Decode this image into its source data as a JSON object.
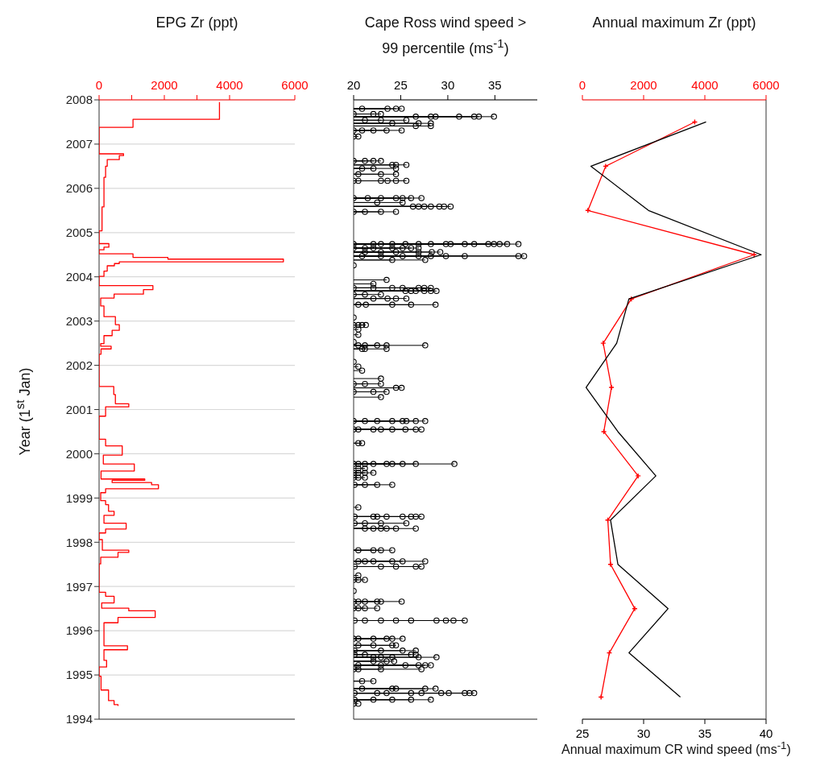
{
  "chart_data": [
    {
      "type": "line",
      "title": "EPG Zr (ppt)",
      "ylabel": "Year (1$^{st}$ Jan)",
      "ylim": [
        1994,
        2008
      ],
      "yticks": [
        1994,
        1995,
        1996,
        1997,
        1998,
        1999,
        2000,
        2001,
        2002,
        2003,
        2004,
        2005,
        2006,
        2007,
        2008
      ],
      "xlim": [
        0,
        6000
      ],
      "xticks": [
        0,
        {
          "value": 1000,
          "label": null
        },
        2000,
        {
          "value": 3000,
          "label": null
        },
        4000,
        6000
      ],
      "grid": "y",
      "marker": "none",
      "line_style": "solid",
      "series": [
        {
          "color": "#ff0000",
          "x": [
            3690,
            3690,
            1040,
            1040,
            0,
            0,
            750,
            750,
            620,
            620,
            250,
            250,
            200,
            200,
            150,
            150,
            90,
            90,
            0,
            0,
            300,
            300,
            150,
            150,
            0,
            0,
            1040,
            1040,
            2110,
            2110,
            5650,
            5650,
            620,
            620,
            470,
            470,
            250,
            250,
            150,
            150,
            0,
            0,
            1650,
            1650,
            1360,
            1360,
            460,
            460,
            50,
            50,
            150,
            150,
            500,
            500,
            620,
            620,
            400,
            400,
            150,
            150,
            50,
            50,
            370,
            370,
            60,
            60,
            0,
            0,
            450,
            450,
            500,
            500,
            910,
            910,
            200,
            200,
            0,
            0,
            200,
            200,
            710,
            710,
            130,
            130,
            1080,
            1080,
            60,
            60,
            1400,
            1400,
            400,
            400,
            1610,
            1610,
            1820,
            1820,
            200,
            200,
            50,
            50,
            200,
            200,
            290,
            290,
            460,
            460,
            150,
            150,
            830,
            830,
            200,
            200,
            0,
            0,
            100,
            100,
            910,
            910,
            580,
            580,
            50,
            50,
            0,
            0,
            200,
            200,
            460,
            460,
            80,
            80,
            910,
            910,
            1720,
            1720,
            580,
            580,
            150,
            150,
            870,
            870,
            150,
            150,
            230,
            230,
            0,
            0,
            60,
            60,
            290,
            290,
            460,
            460,
            580,
            580
          ],
          "values": [
            2007.95,
            2007.56,
            2007.56,
            2007.38,
            2007.38,
            2006.78,
            2006.78,
            2006.74,
            2006.74,
            2006.65,
            2006.65,
            2006.5,
            2006.5,
            2006.25,
            2006.25,
            2005.58,
            2005.58,
            2005.04,
            2005.04,
            2004.75,
            2004.75,
            2004.67,
            2004.67,
            2004.61,
            2004.61,
            2004.52,
            2004.52,
            2004.44,
            2004.44,
            2004.4,
            2004.4,
            2004.34,
            2004.34,
            2004.3,
            2004.3,
            2004.25,
            2004.25,
            2004.13,
            2004.13,
            2004.01,
            2004.01,
            2003.8,
            2003.8,
            2003.71,
            2003.71,
            2003.61,
            2003.61,
            2003.52,
            2003.52,
            2003.34,
            2003.34,
            2003.1,
            2003.1,
            2002.92,
            2002.92,
            2002.79,
            2002.79,
            2002.67,
            2002.67,
            2002.49,
            2002.49,
            2002.43,
            2002.43,
            2002.37,
            2002.37,
            2002.25,
            2002.25,
            2001.52,
            2001.52,
            2001.34,
            2001.34,
            2001.13,
            2001.13,
            2001.06,
            2001.06,
            2000.85,
            2000.85,
            2000.33,
            2000.33,
            2000.18,
            2000.18,
            1999.97,
            1999.97,
            1999.77,
            1999.77,
            1999.61,
            1999.61,
            1999.43,
            1999.43,
            1999.4,
            1999.4,
            1999.35,
            1999.35,
            1999.3,
            1999.3,
            1999.21,
            1999.21,
            1999.12,
            1999.12,
            1998.94,
            1998.94,
            1998.85,
            1998.85,
            1998.7,
            1998.7,
            1998.61,
            1998.61,
            1998.43,
            1998.43,
            1998.3,
            1998.3,
            1998.21,
            1998.21,
            1998.06,
            1998.06,
            1997.82,
            1997.82,
            1997.77,
            1997.77,
            1997.66,
            1997.66,
            1997.51,
            1997.51,
            1996.87,
            1996.87,
            1996.78,
            1996.78,
            1996.63,
            1996.63,
            1996.51,
            1996.51,
            1996.45,
            1996.45,
            1996.3,
            1996.3,
            1996.18,
            1996.18,
            1995.66,
            1995.66,
            1995.57,
            1995.57,
            1995.33,
            1995.33,
            1995.18,
            1995.18,
            1994.97,
            1994.97,
            1994.66,
            1994.66,
            1994.42,
            1994.42,
            1994.33,
            1994.33,
            1994.3
          ]
        }
      ]
    },
    {
      "type": "lollipop",
      "title": "Cape Ross wind speed > 99 percentile (ms$^{-1}$)",
      "ylim": [
        1994,
        2008
      ],
      "yticks": [
        1994,
        1995,
        1996,
        1997,
        1998,
        1999,
        2000,
        2001,
        2002,
        2003,
        2004,
        2005,
        2006,
        2007,
        2008
      ],
      "xlim": [
        20,
        39.5
      ],
      "xticks": [
        20,
        25,
        30,
        35
      ],
      "tick_labels": "x",
      "grid": "y",
      "marker": "circle",
      "orientation": "horizontal",
      "series": [
        {
          "color": "#000000",
          "values": [
            20.9,
            23.6,
            24.5,
            25.1,
            20.0,
            22.1,
            22.9,
            26.6,
            28.2,
            28.7,
            31.2,
            32.8,
            33.3,
            34.9,
            21.2,
            22.9,
            25.6,
            24.1,
            26.9,
            28.2,
            26.6,
            28.2,
            20.0,
            20.9,
            22.1,
            23.5,
            25.1,
            20.0,
            20.5,
            20.0,
            21.2,
            22.1,
            22.9,
            24.1,
            24.5,
            25.6,
            20.9,
            22.1,
            24.5,
            20.5,
            22.9,
            24.5,
            20.0,
            20.5,
            22.9,
            23.6,
            24.5,
            25.6,
            20.0,
            21.5,
            22.9,
            24.5,
            25.2,
            26.1,
            27.2,
            22.5,
            25.2,
            26.3,
            26.9,
            27.5,
            28.2,
            29.1,
            29.6,
            30.3,
            20.0,
            21.2,
            22.9,
            24.5,
            20.0,
            22.1,
            22.9,
            24.1,
            25.5,
            26.9,
            28.2,
            29.8,
            30.3,
            31.8,
            32.8,
            34.3,
            34.9,
            35.5,
            36.3,
            37.5,
            20.0,
            21.2,
            22.1,
            24.1,
            25.2,
            26.1,
            26.9,
            21.2,
            22.9,
            24.5,
            26.9,
            28.3,
            29.2,
            20.9,
            22.9,
            25.2,
            26.9,
            28.2,
            29.8,
            31.8,
            37.5,
            38.1,
            24.1,
            27.6,
            20.0,
            23.5,
            22.1,
            20.0,
            22.1,
            24.1,
            25.2,
            26.9,
            27.5,
            28.2,
            25.5,
            26.1,
            26.6,
            27.5,
            28.2,
            28.8,
            20.0,
            21.2,
            22.9,
            22.1,
            23.6,
            24.5,
            25.6,
            20.5,
            21.3,
            24.1,
            26.1,
            28.7,
            20.0,
            20.0,
            20.5,
            20.9,
            21.3,
            20.5,
            20.5,
            20.0,
            20.5,
            21.2,
            22.5,
            23.5,
            27.6,
            20.9,
            21.2,
            23.5,
            20.0,
            20.5,
            20.9,
            22.9,
            20.0,
            21.2,
            22.9,
            24.5,
            25.1,
            20.0,
            22.1,
            23.5,
            22.9,
            20.0,
            21.2,
            22.5,
            24.1,
            25.2,
            25.6,
            26.6,
            27.6,
            20.0,
            20.5,
            22.1,
            22.9,
            24.1,
            25.5,
            26.6,
            27.2,
            20.5,
            20.9,
            20.0,
            20.5,
            21.2,
            22.1,
            23.5,
            24.1,
            25.2,
            26.6,
            30.7,
            20.5,
            21.2,
            20.0,
            20.5,
            21.2,
            22.1,
            20.0,
            20.5,
            21.2,
            20.1,
            21.2,
            22.5,
            24.1,
            20.5,
            20.1,
            22.1,
            22.5,
            23.5,
            25.2,
            26.1,
            26.6,
            27.2,
            20.1,
            21.2,
            22.9,
            25.6,
            21.2,
            22.1,
            22.9,
            23.5,
            24.5,
            26.6,
            20.5,
            22.1,
            22.9,
            24.1,
            20.5,
            21.2,
            22.1,
            24.1,
            25.2,
            27.6,
            20.1,
            22.9,
            24.5,
            26.6,
            27.2,
            20.5,
            20.0,
            20.5,
            21.2,
            20.0,
            20.0,
            20.5,
            21.2,
            22.5,
            22.9,
            25.1,
            20.0,
            20.5,
            21.2,
            22.5,
            20.1,
            21.2,
            22.9,
            24.5,
            26.1,
            28.8,
            29.8,
            30.6,
            31.8,
            20.0,
            20.5,
            22.1,
            23.5,
            24.1,
            25.2,
            20.5,
            22.1,
            24.1,
            24.5,
            20.1,
            22.9,
            25.2,
            26.6,
            20.1,
            21.2,
            26.1,
            26.6,
            22.1,
            22.9,
            24.1,
            26.9,
            28.8,
            22.1,
            23.5,
            24.3,
            20.5,
            22.9,
            25.5,
            26.9,
            27.6,
            28.2,
            20.0,
            20.5,
            22.9,
            27.2,
            20.9,
            22.1,
            20.9,
            24.1,
            24.5,
            27.6,
            28.7,
            20.1,
            22.5,
            23.5,
            26.1,
            27.2,
            29.3,
            30.1,
            31.8,
            32.3,
            32.8,
            20.1,
            22.1,
            24.1,
            26.1,
            28.2,
            20.0,
            20.5
          ],
          "x": [
            2007.8,
            2007.8,
            2007.8,
            2007.8,
            2007.68,
            2007.68,
            2007.68,
            2007.62,
            2007.62,
            2007.62,
            2007.62,
            2007.62,
            2007.62,
            2007.62,
            2007.54,
            2007.54,
            2007.54,
            2007.47,
            2007.47,
            2007.47,
            2007.41,
            2007.41,
            2007.31,
            2007.31,
            2007.31,
            2007.31,
            2007.31,
            2007.17,
            2007.17,
            2006.62,
            2006.62,
            2006.62,
            2006.62,
            2006.53,
            2006.53,
            2006.53,
            2006.45,
            2006.45,
            2006.45,
            2006.32,
            2006.32,
            2006.32,
            2006.17,
            2006.17,
            2006.17,
            2006.17,
            2006.17,
            2006.17,
            2005.78,
            2005.78,
            2005.78,
            2005.78,
            2005.78,
            2005.78,
            2005.78,
            2005.68,
            2005.68,
            2005.59,
            2005.59,
            2005.59,
            2005.59,
            2005.59,
            2005.59,
            2005.59,
            2005.47,
            2005.47,
            2005.47,
            2005.47,
            2004.74,
            2004.74,
            2004.74,
            2004.74,
            2004.74,
            2004.74,
            2004.74,
            2004.74,
            2004.74,
            2004.74,
            2004.74,
            2004.74,
            2004.74,
            2004.74,
            2004.74,
            2004.74,
            2004.65,
            2004.65,
            2004.65,
            2004.65,
            2004.65,
            2004.65,
            2004.65,
            2004.56,
            2004.56,
            2004.56,
            2004.56,
            2004.56,
            2004.56,
            2004.47,
            2004.47,
            2004.47,
            2004.47,
            2004.47,
            2004.47,
            2004.47,
            2004.47,
            2004.47,
            2004.38,
            2004.38,
            2004.26,
            2003.93,
            2003.84,
            2003.75,
            2003.75,
            2003.75,
            2003.75,
            2003.75,
            2003.75,
            2003.75,
            2003.68,
            2003.68,
            2003.68,
            2003.68,
            2003.68,
            2003.68,
            2003.6,
            2003.6,
            2003.6,
            2003.51,
            2003.51,
            2003.51,
            2003.51,
            2003.37,
            2003.37,
            2003.37,
            2003.37,
            2003.37,
            2003.08,
            2002.91,
            2002.91,
            2002.91,
            2002.91,
            2002.81,
            2002.69,
            2002.53,
            2002.45,
            2002.45,
            2002.45,
            2002.45,
            2002.45,
            2002.37,
            2002.37,
            2002.37,
            2002.08,
            2001.97,
            2001.88,
            2001.7,
            2001.58,
            2001.58,
            2001.58,
            2001.49,
            2001.49,
            2001.4,
            2001.4,
            2001.4,
            2001.28,
            2000.74,
            2000.74,
            2000.74,
            2000.74,
            2000.74,
            2000.74,
            2000.74,
            2000.74,
            2000.55,
            2000.55,
            2000.55,
            2000.55,
            2000.55,
            2000.55,
            2000.55,
            2000.55,
            2000.24,
            2000.24,
            1999.77,
            1999.77,
            1999.77,
            1999.77,
            1999.77,
            1999.77,
            1999.77,
            1999.77,
            1999.77,
            1999.67,
            1999.67,
            1999.57,
            1999.57,
            1999.57,
            1999.57,
            1999.46,
            1999.46,
            1999.46,
            1999.3,
            1999.3,
            1999.3,
            1999.3,
            1998.79,
            1998.58,
            1998.58,
            1998.58,
            1998.58,
            1998.58,
            1998.58,
            1998.58,
            1998.58,
            1998.43,
            1998.43,
            1998.43,
            1998.43,
            1998.31,
            1998.31,
            1998.31,
            1998.31,
            1998.31,
            1998.31,
            1997.82,
            1997.82,
            1997.82,
            1997.82,
            1997.57,
            1997.57,
            1997.57,
            1997.57,
            1997.57,
            1997.57,
            1997.45,
            1997.45,
            1997.45,
            1997.45,
            1997.45,
            1997.25,
            1997.15,
            1997.15,
            1997.15,
            1996.9,
            1996.66,
            1996.66,
            1996.66,
            1996.66,
            1996.66,
            1996.66,
            1996.51,
            1996.51,
            1996.51,
            1996.51,
            1996.23,
            1996.23,
            1996.23,
            1996.23,
            1996.23,
            1996.23,
            1996.23,
            1996.23,
            1996.23,
            1995.82,
            1995.82,
            1995.82,
            1995.82,
            1995.82,
            1995.82,
            1995.67,
            1995.67,
            1995.67,
            1995.67,
            1995.55,
            1995.55,
            1995.55,
            1995.55,
            1995.46,
            1995.46,
            1995.46,
            1995.46,
            1995.4,
            1995.4,
            1995.4,
            1995.4,
            1995.4,
            1995.31,
            1995.31,
            1995.31,
            1995.22,
            1995.22,
            1995.22,
            1995.22,
            1995.22,
            1995.22,
            1995.13,
            1995.13,
            1995.13,
            1995.13,
            1994.86,
            1994.86,
            1994.69,
            1994.69,
            1994.69,
            1994.69,
            1994.69,
            1994.59,
            1994.59,
            1994.59,
            1994.59,
            1994.59,
            1994.59,
            1994.59,
            1994.59,
            1994.59,
            1994.59,
            1994.44,
            1994.44,
            1994.44,
            1994.44,
            1994.44,
            1994.35,
            1994.35
          ]
        }
      ]
    },
    {
      "type": "line",
      "title": "Annual maximum Zr (ppt)",
      "xlabel": "Annual maximum CR wind speed (ms$^{-1}$)",
      "ylim": [
        1994,
        2008
      ],
      "yticks": [
        1994,
        1995,
        1996,
        1997,
        1998,
        1999,
        2000,
        2001,
        2002,
        2003,
        2004,
        2005,
        2006,
        2007,
        2008
      ],
      "xlim": [
        25,
        40
      ],
      "xticks": [
        25,
        30,
        35,
        40
      ],
      "x2lim": [
        0,
        6000
      ],
      "x2ticks": [
        0,
        2000,
        4000,
        6000
      ],
      "tick_labels": "x",
      "grid": "y",
      "line_style": "solid",
      "series": [
        {
          "color": "#ff0000",
          "axis": "x2",
          "marker": "cross",
          "x": [
            3670,
            760,
            180,
            5610,
            1600,
            680,
            950,
            700,
            1820,
            830,
            920,
            1710,
            880,
            610
          ],
          "values": [
            2007.5,
            2006.5,
            2005.5,
            2004.5,
            2003.5,
            2002.5,
            2001.5,
            2000.5,
            1999.5,
            1998.5,
            1997.5,
            1996.5,
            1995.5,
            1994.5
          ]
        },
        {
          "color": "#000000",
          "marker": "none",
          "x": [
            35.1,
            25.7,
            30.4,
            39.6,
            28.8,
            27.8,
            25.3,
            27.9,
            31.0,
            27.3,
            27.9,
            32.0,
            28.8,
            33.0
          ],
          "values": [
            2007.5,
            2006.5,
            2005.5,
            2004.5,
            2003.5,
            2002.5,
            2001.5,
            2000.5,
            1999.5,
            1998.5,
            1997.5,
            1996.5,
            1995.5,
            1994.5
          ]
        }
      ]
    }
  ]
}
